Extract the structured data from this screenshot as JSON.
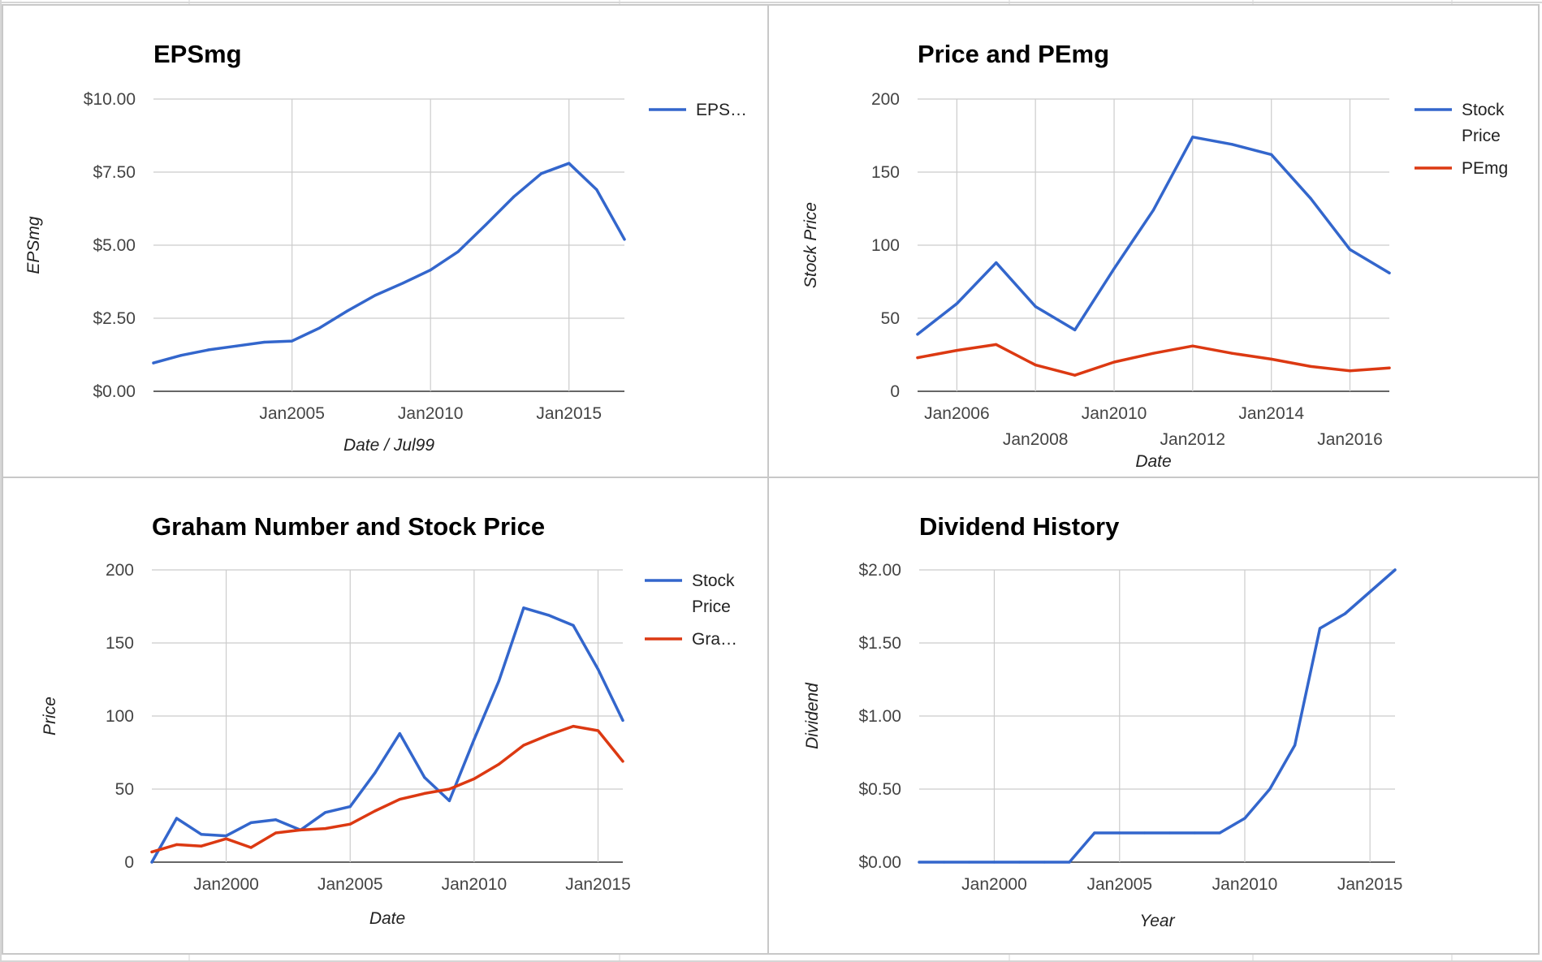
{
  "chart_data": [
    {
      "type": "line",
      "title": "EPSmg",
      "xlabel": "Date / Jul99",
      "ylabel": "EPSmg",
      "x_type": "date",
      "xlim": [
        "2000-01-01",
        "2017-01-01"
      ],
      "ylim": [
        0,
        10
      ],
      "y_ticks": [
        0,
        2.5,
        5,
        7.5,
        10
      ],
      "y_tick_labels": [
        "$0.00",
        "$2.50",
        "$5.00",
        "$7.50",
        "$10.00"
      ],
      "x_ticks": [
        "2005-01-01",
        "2010-01-01",
        "2015-01-01"
      ],
      "x_tick_labels": [
        "Jan2005",
        "Jan2010",
        "Jan2015"
      ],
      "grid": true,
      "legend": "right",
      "series": [
        {
          "name": "EPS…",
          "color": "#3366cc",
          "x": [
            "2000-01-01",
            "2001-01-01",
            "2002-01-01",
            "2003-01-01",
            "2004-01-01",
            "2005-01-01",
            "2006-01-01",
            "2007-01-01",
            "2008-01-01",
            "2009-01-01",
            "2010-01-01",
            "2011-01-01",
            "2012-01-01",
            "2013-01-01",
            "2014-01-01",
            "2015-01-01",
            "2016-01-01",
            "2017-01-01"
          ],
          "values": [
            0.97,
            1.23,
            1.42,
            1.55,
            1.68,
            1.72,
            2.17,
            2.75,
            3.28,
            3.7,
            4.15,
            4.78,
            5.7,
            6.65,
            7.45,
            7.8,
            6.9,
            5.2
          ]
        }
      ]
    },
    {
      "type": "line",
      "title": "Price and PEmg",
      "xlabel": "Date",
      "ylabel": "Stock Price",
      "x_type": "date",
      "xlim": [
        "2005-01-01",
        "2017-01-01"
      ],
      "ylim": [
        0,
        200
      ],
      "y_ticks": [
        0,
        50,
        100,
        150,
        200
      ],
      "y_tick_labels": [
        "0",
        "50",
        "100",
        "150",
        "200"
      ],
      "x_ticks": [
        "2006-01-01",
        "2008-01-01",
        "2010-01-01",
        "2012-01-01",
        "2014-01-01",
        "2016-01-01"
      ],
      "x_tick_labels": [
        "Jan2006",
        "Jan2008",
        "Jan2010",
        "Jan2012",
        "Jan2014",
        "Jan2016"
      ],
      "grid": true,
      "legend": "right",
      "series": [
        {
          "name": "Stock Price",
          "color": "#3366cc",
          "x": [
            "2005-01-01",
            "2006-01-01",
            "2007-01-01",
            "2008-01-01",
            "2009-01-01",
            "2010-01-01",
            "2011-01-01",
            "2012-01-01",
            "2013-01-01",
            "2014-01-01",
            "2015-01-01",
            "2016-01-01",
            "2017-01-01"
          ],
          "values": [
            39,
            60,
            88,
            58,
            42,
            84,
            124,
            174,
            169,
            162,
            132,
            97,
            81
          ]
        },
        {
          "name": "PEmg",
          "color": "#dc3912",
          "x": [
            "2005-01-01",
            "2006-01-01",
            "2007-01-01",
            "2008-01-01",
            "2009-01-01",
            "2010-01-01",
            "2011-01-01",
            "2012-01-01",
            "2013-01-01",
            "2014-01-01",
            "2015-01-01",
            "2016-01-01",
            "2017-01-01"
          ],
          "values": [
            23,
            28,
            32,
            18,
            11,
            20,
            26,
            31,
            26,
            22,
            17,
            14,
            16
          ]
        }
      ]
    },
    {
      "type": "line",
      "title": "Graham Number and Stock Price",
      "xlabel": "Date",
      "ylabel": "Price",
      "x_type": "date",
      "xlim": [
        "1997-01-01",
        "2016-01-01"
      ],
      "ylim": [
        0,
        200
      ],
      "y_ticks": [
        0,
        50,
        100,
        150,
        200
      ],
      "y_tick_labels": [
        "0",
        "50",
        "100",
        "150",
        "200"
      ],
      "x_ticks": [
        "2000-01-01",
        "2005-01-01",
        "2010-01-01",
        "2015-01-01"
      ],
      "x_tick_labels": [
        "Jan2000",
        "Jan2005",
        "Jan2010",
        "Jan2015"
      ],
      "grid": true,
      "legend": "right",
      "series": [
        {
          "name": "Stock Price",
          "color": "#3366cc",
          "x": [
            "1997-01-01",
            "1998-01-01",
            "1999-01-01",
            "2000-01-01",
            "2001-01-01",
            "2002-01-01",
            "2003-01-01",
            "2004-01-01",
            "2005-01-01",
            "2006-01-01",
            "2007-01-01",
            "2008-01-01",
            "2009-01-01",
            "2010-01-01",
            "2011-01-01",
            "2012-01-01",
            "2013-01-01",
            "2014-01-01",
            "2015-01-01",
            "2016-01-01"
          ],
          "values": [
            0,
            30,
            19,
            18,
            27,
            29,
            22,
            34,
            38,
            61,
            88,
            58,
            42,
            84,
            124,
            174,
            169,
            162,
            132,
            97
          ]
        },
        {
          "name": "Gra…",
          "color": "#dc3912",
          "x": [
            "1997-01-01",
            "1998-01-01",
            "1999-01-01",
            "2000-01-01",
            "2001-01-01",
            "2002-01-01",
            "2003-01-01",
            "2004-01-01",
            "2005-01-01",
            "2006-01-01",
            "2007-01-01",
            "2008-01-01",
            "2009-01-01",
            "2010-01-01",
            "2011-01-01",
            "2012-01-01",
            "2013-01-01",
            "2014-01-01",
            "2015-01-01",
            "2016-01-01"
          ],
          "values": [
            7,
            12,
            11,
            16,
            10,
            20,
            22,
            23,
            26,
            35,
            43,
            47,
            50,
            57,
            67,
            80,
            87,
            93,
            90,
            69
          ]
        }
      ]
    },
    {
      "type": "line",
      "title": "Dividend History",
      "xlabel": "Year",
      "ylabel": "Dividend",
      "x_type": "date",
      "xlim": [
        "1997-01-01",
        "2016-01-01"
      ],
      "ylim": [
        0,
        2
      ],
      "y_ticks": [
        0,
        0.5,
        1,
        1.5,
        2
      ],
      "y_tick_labels": [
        "$0.00",
        "$0.50",
        "$1.00",
        "$1.50",
        "$2.00"
      ],
      "x_ticks": [
        "2000-01-01",
        "2005-01-01",
        "2010-01-01",
        "2015-01-01"
      ],
      "x_tick_labels": [
        "Jan2000",
        "Jan2005",
        "Jan2010",
        "Jan2015"
      ],
      "grid": true,
      "legend": "none",
      "series": [
        {
          "color": "#3366cc",
          "x": [
            "1997-01-01",
            "1998-01-01",
            "1999-01-01",
            "2000-01-01",
            "2001-01-01",
            "2002-01-01",
            "2003-01-01",
            "2004-01-01",
            "2005-01-01",
            "2006-01-01",
            "2007-01-01",
            "2008-01-01",
            "2009-01-01",
            "2010-01-01",
            "2011-01-01",
            "2012-01-01",
            "2013-01-01",
            "2014-01-01",
            "2015-01-01",
            "2016-01-01"
          ],
          "values": [
            0,
            0,
            0,
            0,
            0,
            0,
            0,
            0.2,
            0.2,
            0.2,
            0.2,
            0.2,
            0.2,
            0.3,
            0.5,
            0.8,
            1.6,
            1.7,
            1.85,
            2.0
          ]
        }
      ]
    }
  ]
}
